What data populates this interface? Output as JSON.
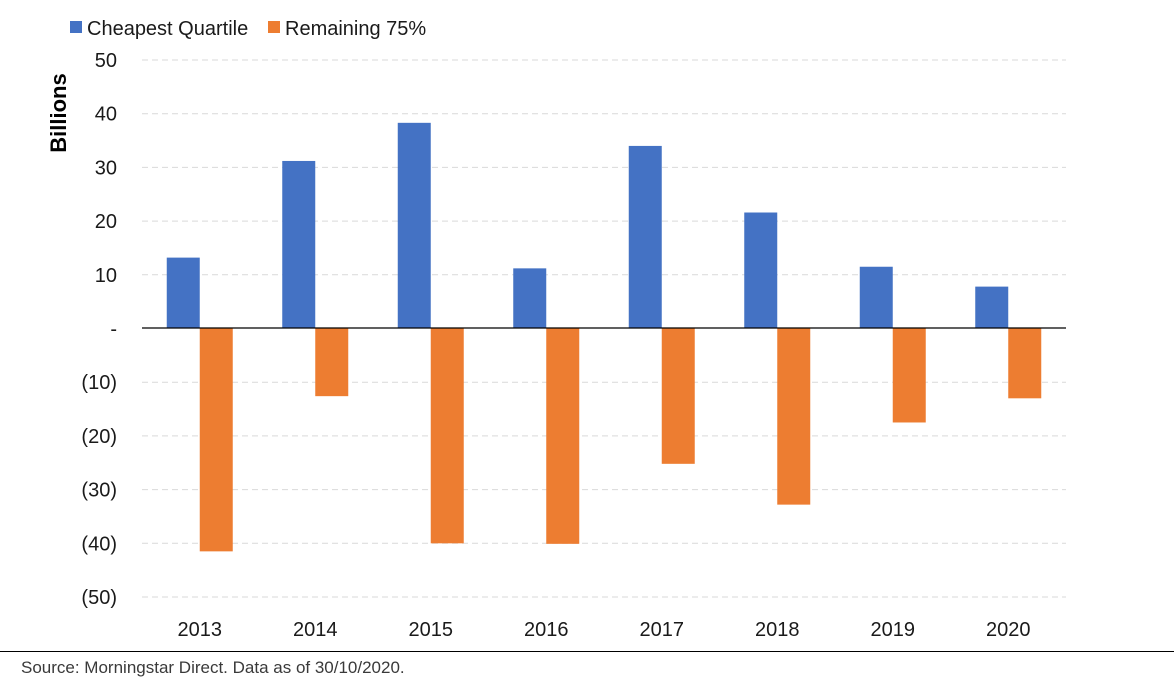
{
  "chart_data": {
    "type": "bar",
    "title": "",
    "xlabel": "",
    "ylabel": "Billions",
    "ylim": [
      -50,
      50
    ],
    "yticks": [
      50,
      40,
      30,
      20,
      10,
      0,
      -10,
      -20,
      -30,
      -40,
      -50
    ],
    "ytick_labels": [
      "50",
      "40",
      "30",
      "20",
      "10",
      "-",
      "(10)",
      "(20)",
      "(30)",
      "(40)",
      "(50)"
    ],
    "categories": [
      "2013",
      "2014",
      "2015",
      "2016",
      "2017",
      "2018",
      "2019",
      "2020"
    ],
    "series": [
      {
        "name": "Cheapest Quartile",
        "color": "#4472C4",
        "values": [
          13.2,
          31.2,
          38.3,
          11.2,
          34.0,
          21.6,
          11.5,
          7.8
        ]
      },
      {
        "name": "Remaining 75%",
        "color": "#ED7D31",
        "values": [
          -41.5,
          -12.6,
          -40.0,
          -40.1,
          -25.2,
          -32.8,
          -17.5,
          -13.0
        ]
      }
    ],
    "grid": true,
    "grid_style": "dashed",
    "legend_position": "top-left"
  },
  "source_note": "Source: Morningstar Direct. Data as of 30/10/2020."
}
